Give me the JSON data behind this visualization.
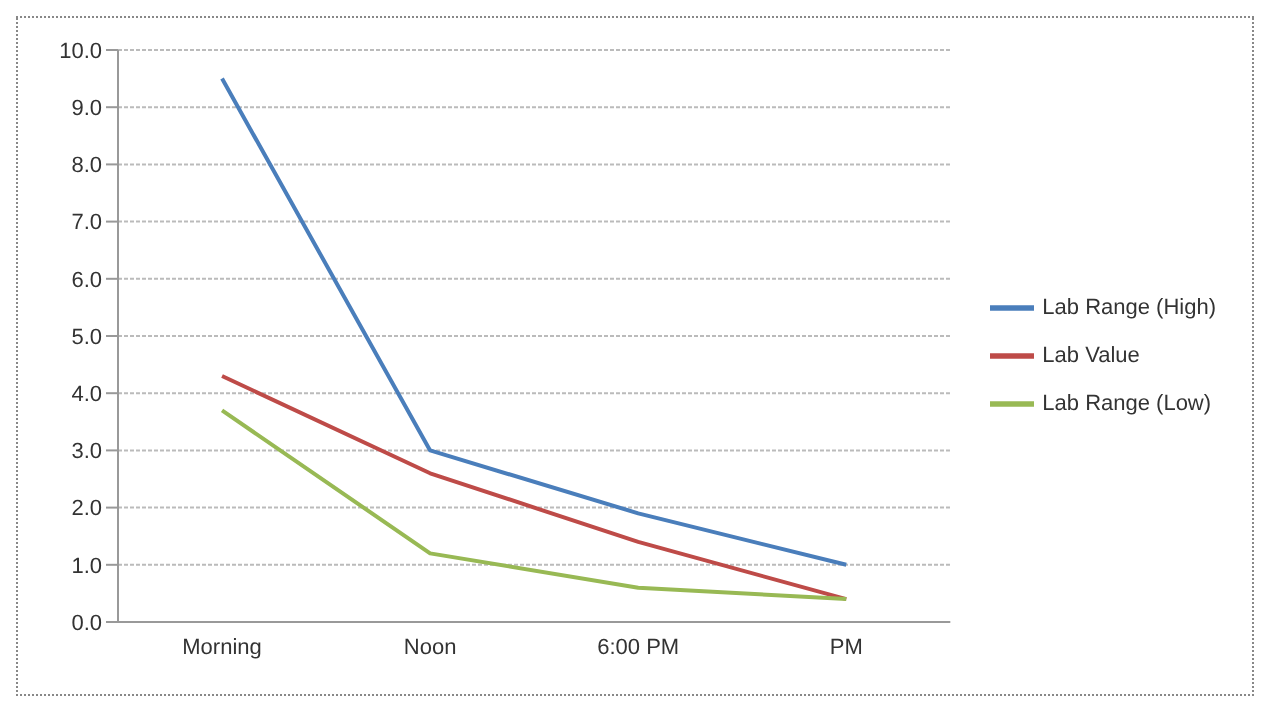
{
  "chart_data": {
    "type": "line",
    "categories": [
      "Morning",
      "Noon",
      "6:00 PM",
      "PM"
    ],
    "series": [
      {
        "name": "Lab Range (High)",
        "color": "#4a7ebb",
        "values": [
          9.5,
          3.0,
          1.9,
          1.0
        ]
      },
      {
        "name": "Lab Value",
        "color": "#be4b48",
        "values": [
          4.3,
          2.6,
          1.4,
          0.4
        ]
      },
      {
        "name": "Lab Range (Low)",
        "color": "#98b954",
        "values": [
          3.7,
          1.2,
          0.6,
          0.4
        ]
      }
    ],
    "ylim": [
      0,
      10
    ],
    "yticks": [
      {
        "value": 0,
        "label": "0.0"
      },
      {
        "value": 1,
        "label": "1.0"
      },
      {
        "value": 2,
        "label": "2.0"
      },
      {
        "value": 3,
        "label": "3.0"
      },
      {
        "value": 4,
        "label": "4.0"
      },
      {
        "value": 5,
        "label": "5.0"
      },
      {
        "value": 6,
        "label": "6.0"
      },
      {
        "value": 7,
        "label": "7.0"
      },
      {
        "value": 8,
        "label": "8.0"
      },
      {
        "value": 9,
        "label": "9.0"
      },
      {
        "value": 10,
        "label": "10.0"
      }
    ],
    "grid": "y",
    "legend": "right",
    "marker": "none",
    "line_style": "solid"
  }
}
